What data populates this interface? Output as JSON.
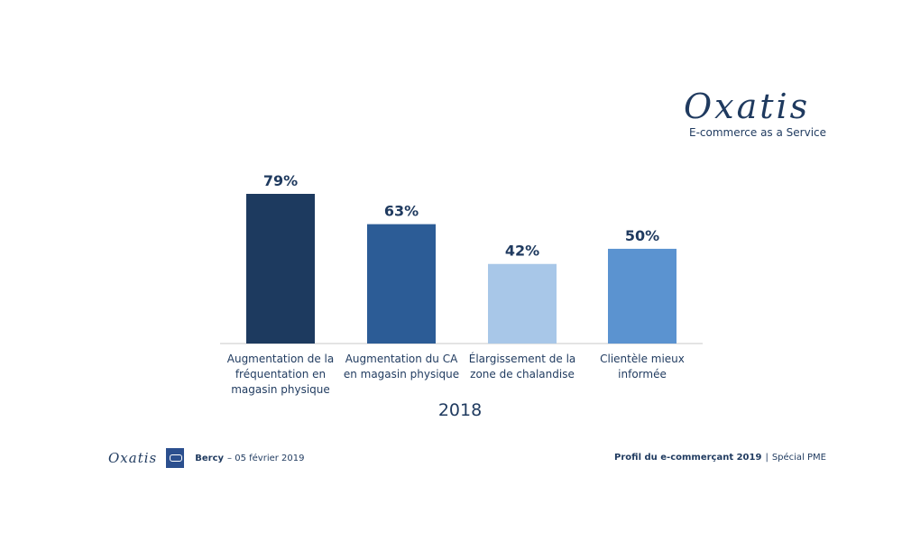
{
  "brand": {
    "logo_text": "Oxatis",
    "tagline": "E-commerce as a Service"
  },
  "chart_data": {
    "type": "bar",
    "categories": [
      "Augmentation de la fréquentation en magasin physique",
      "Augmentation du CA en magasin physique",
      "Élargissement de la zone de chalandise",
      "Clientèle mieux informée"
    ],
    "category_lines": [
      [
        "Augmentation de la",
        "fréquentation en",
        "magasin physique"
      ],
      [
        "Augmentation du CA",
        "en magasin physique"
      ],
      [
        "Élargissement de la",
        "zone de chalandise"
      ],
      [
        "Clientèle mieux",
        "informée"
      ]
    ],
    "values": [
      79,
      63,
      42,
      50
    ],
    "value_labels": [
      "79%",
      "63%",
      "42%",
      "50%"
    ],
    "bar_colors": [
      "#1d3a5f",
      "#2c5c96",
      "#a8c7e8",
      "#5b93d0"
    ],
    "xlabel": "2018",
    "ylabel": "",
    "ylim": [
      0,
      79
    ],
    "grid": false,
    "legend": "none"
  },
  "footer": {
    "logo_text": "Oxatis",
    "place": "Bercy",
    "date": "– 05 février 2019",
    "title": "Profil du e-commerçant 2019",
    "separator": "|",
    "subtitle": "Spécial PME"
  }
}
